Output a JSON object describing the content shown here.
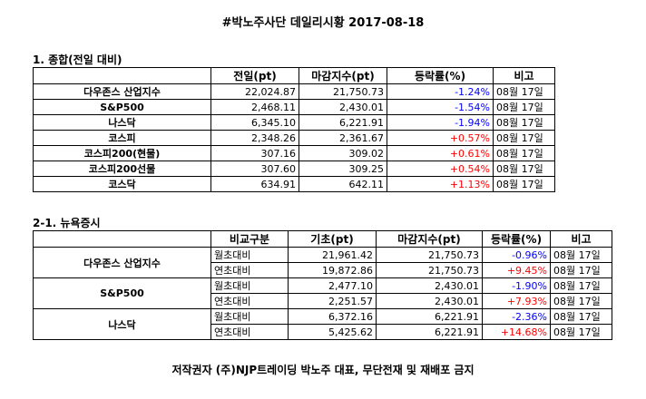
{
  "title": "#박노주사단 데일리시황 2017-08-18",
  "section1": {
    "heading": "1. 종합(전일 대비)",
    "headers": [
      "",
      "전일(pt)",
      "마감지수(pt)",
      "등락률(%)",
      "비고"
    ],
    "rows": [
      {
        "name": "다우존스 산업지수",
        "prev": "22,024.87",
        "close": "21,750.73",
        "change": "-1.24%",
        "note": "08월 17일"
      },
      {
        "name": "S&P500",
        "prev": "2,468.11",
        "close": "2,430.01",
        "change": "-1.54%",
        "note": "08월 17일"
      },
      {
        "name": "나스닥",
        "prev": "6,345.10",
        "close": "6,221.91",
        "change": "-1.94%",
        "note": "08월 17일"
      },
      {
        "name": "코스피",
        "prev": "2,348.26",
        "close": "2,361.67",
        "change": "+0.57%",
        "note": "08월 17일"
      },
      {
        "name": "코스피200(현물)",
        "prev": "307.16",
        "close": "309.02",
        "change": "+0.61%",
        "note": "08월 17일"
      },
      {
        "name": "코스피200선물",
        "prev": "307.60",
        "close": "309.25",
        "change": "+0.54%",
        "note": "08월 17일"
      },
      {
        "name": "코스닥",
        "prev": "634.91",
        "close": "642.11",
        "change": "+1.13%",
        "note": "08월 17일"
      }
    ]
  },
  "section2": {
    "heading": "2-1. 뉴욕증시",
    "headers": [
      "",
      "비교구분",
      "기초(pt)",
      "마감지수(pt)",
      "등락률(%)",
      "비고"
    ],
    "groups": [
      {
        "name": "다우존스 산업지수",
        "rows": [
          {
            "type": "월초대비",
            "base": "21,961.42",
            "close": "21,750.73",
            "change": "-0.96%",
            "note": "08월 17일"
          },
          {
            "type": "연초대비",
            "base": "19,872.86",
            "close": "21,750.73",
            "change": "+9.45%",
            "note": "08월 17일"
          }
        ]
      },
      {
        "name": "S&P500",
        "rows": [
          {
            "type": "월초대비",
            "base": "2,477.10",
            "close": "2,430.01",
            "change": "-1.90%",
            "note": "08월 17일"
          },
          {
            "type": "연초대비",
            "base": "2,251.57",
            "close": "2,430.01",
            "change": "+7.93%",
            "note": "08월 17일"
          }
        ]
      },
      {
        "name": "나스닥",
        "rows": [
          {
            "type": "월초대비",
            "base": "6,372.16",
            "close": "6,221.91",
            "change": "-2.36%",
            "note": "08월 17일"
          },
          {
            "type": "연초대비",
            "base": "5,425.62",
            "close": "6,221.91",
            "change": "+14.68%",
            "note": "08월 17일"
          }
        ]
      }
    ]
  },
  "footer": "저작권자 (주)NJP트레이딩 박노주 대표, 무단전재 및 재배포 금지",
  "colors": {
    "negative": "#0000ff",
    "positive": "#ff0000"
  }
}
